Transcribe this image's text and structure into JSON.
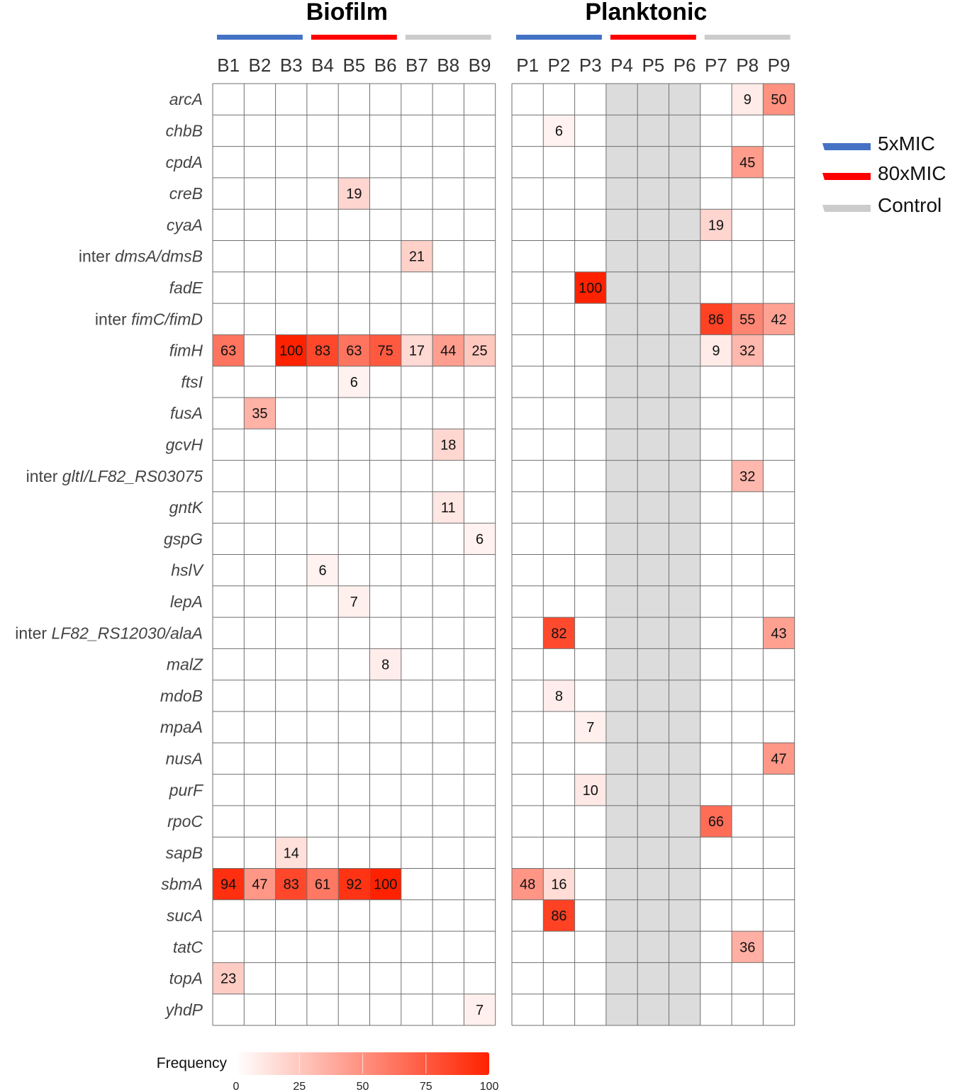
{
  "chart_data": {
    "type": "heatmap",
    "panels": [
      {
        "title": "Biofilm",
        "columns": [
          "B1",
          "B2",
          "B3",
          "B4",
          "B5",
          "B6",
          "B7",
          "B8",
          "B9"
        ],
        "greyed_columns": []
      },
      {
        "title": "Planktonic",
        "columns": [
          "P1",
          "P2",
          "P3",
          "P4",
          "P5",
          "P6",
          "P7",
          "P8",
          "P9"
        ],
        "greyed_columns": [
          "P4",
          "P5",
          "P6"
        ]
      }
    ],
    "rows": [
      {
        "pre": "",
        "gene": "arcA"
      },
      {
        "pre": "",
        "gene": "chbB"
      },
      {
        "pre": "",
        "gene": "cpdA"
      },
      {
        "pre": "",
        "gene": "creB"
      },
      {
        "pre": "",
        "gene": "cyaA"
      },
      {
        "pre": "inter ",
        "gene": "dmsA/dmsB"
      },
      {
        "pre": "",
        "gene": "fadE"
      },
      {
        "pre": "inter ",
        "gene": "fimC/fimD"
      },
      {
        "pre": "",
        "gene": "fimH"
      },
      {
        "pre": "",
        "gene": "ftsI"
      },
      {
        "pre": "",
        "gene": "fusA"
      },
      {
        "pre": "",
        "gene": "gcvH"
      },
      {
        "pre": "inter ",
        "gene": "gltI/LF82_RS03075"
      },
      {
        "pre": "",
        "gene": "gntK"
      },
      {
        "pre": "",
        "gene": "gspG"
      },
      {
        "pre": "",
        "gene": "hslV"
      },
      {
        "pre": "",
        "gene": "lepA"
      },
      {
        "pre": "inter ",
        "gene": "LF82_RS12030/alaA"
      },
      {
        "pre": "",
        "gene": "malZ"
      },
      {
        "pre": "",
        "gene": "mdoB"
      },
      {
        "pre": "",
        "gene": "mpaA"
      },
      {
        "pre": "",
        "gene": "nusA"
      },
      {
        "pre": "",
        "gene": "purF"
      },
      {
        "pre": "",
        "gene": "rpoC"
      },
      {
        "pre": "",
        "gene": "sapB"
      },
      {
        "pre": "",
        "gene": "sbmA"
      },
      {
        "pre": "",
        "gene": "sucA"
      },
      {
        "pre": "",
        "gene": "tatC"
      },
      {
        "pre": "",
        "gene": "topA"
      },
      {
        "pre": "",
        "gene": "yhdP"
      }
    ],
    "values": [
      {
        "row": "arcA",
        "col": "P8",
        "value": 9
      },
      {
        "row": "arcA",
        "col": "P9",
        "value": 50
      },
      {
        "row": "chbB",
        "col": "P2",
        "value": 6
      },
      {
        "row": "cpdA",
        "col": "P8",
        "value": 45
      },
      {
        "row": "creB",
        "col": "B5",
        "value": 19
      },
      {
        "row": "cyaA",
        "col": "P7",
        "value": 19
      },
      {
        "row": "dmsA/dmsB",
        "col": "B7",
        "value": 21
      },
      {
        "row": "fadE",
        "col": "P3",
        "value": 100
      },
      {
        "row": "fimC/fimD",
        "col": "P7",
        "value": 86
      },
      {
        "row": "fimC/fimD",
        "col": "P8",
        "value": 55
      },
      {
        "row": "fimC/fimD",
        "col": "P9",
        "value": 42
      },
      {
        "row": "fimH",
        "col": "B1",
        "value": 63
      },
      {
        "row": "fimH",
        "col": "B3",
        "value": 100
      },
      {
        "row": "fimH",
        "col": "B4",
        "value": 83
      },
      {
        "row": "fimH",
        "col": "B5",
        "value": 63
      },
      {
        "row": "fimH",
        "col": "B6",
        "value": 75
      },
      {
        "row": "fimH",
        "col": "B7",
        "value": 17
      },
      {
        "row": "fimH",
        "col": "B8",
        "value": 44
      },
      {
        "row": "fimH",
        "col": "B9",
        "value": 25
      },
      {
        "row": "fimH",
        "col": "P7",
        "value": 9
      },
      {
        "row": "fimH",
        "col": "P8",
        "value": 32
      },
      {
        "row": "ftsI",
        "col": "B5",
        "value": 6
      },
      {
        "row": "fusA",
        "col": "B2",
        "value": 35
      },
      {
        "row": "gcvH",
        "col": "B8",
        "value": 18
      },
      {
        "row": "gltI/LF82_RS03075",
        "col": "P8",
        "value": 32
      },
      {
        "row": "gntK",
        "col": "B8",
        "value": 11
      },
      {
        "row": "gspG",
        "col": "B9",
        "value": 6
      },
      {
        "row": "hslV",
        "col": "B4",
        "value": 6
      },
      {
        "row": "lepA",
        "col": "B5",
        "value": 7
      },
      {
        "row": "LF82_RS12030/alaA",
        "col": "P2",
        "value": 82
      },
      {
        "row": "LF82_RS12030/alaA",
        "col": "P9",
        "value": 43
      },
      {
        "row": "malZ",
        "col": "B6",
        "value": 8
      },
      {
        "row": "mdoB",
        "col": "P2",
        "value": 8
      },
      {
        "row": "mpaA",
        "col": "P3",
        "value": 7
      },
      {
        "row": "nusA",
        "col": "P9",
        "value": 47
      },
      {
        "row": "purF",
        "col": "P3",
        "value": 10
      },
      {
        "row": "rpoC",
        "col": "P7",
        "value": 66
      },
      {
        "row": "sapB",
        "col": "B3",
        "value": 14
      },
      {
        "row": "sbmA",
        "col": "B1",
        "value": 94
      },
      {
        "row": "sbmA",
        "col": "B2",
        "value": 47
      },
      {
        "row": "sbmA",
        "col": "B3",
        "value": 83
      },
      {
        "row": "sbmA",
        "col": "B4",
        "value": 61
      },
      {
        "row": "sbmA",
        "col": "B5",
        "value": 92
      },
      {
        "row": "sbmA",
        "col": "B6",
        "value": 100
      },
      {
        "row": "sbmA",
        "col": "P1",
        "value": 48
      },
      {
        "row": "sbmA",
        "col": "P2",
        "value": 16
      },
      {
        "row": "sucA",
        "col": "P2",
        "value": 86
      },
      {
        "row": "tatC",
        "col": "P8",
        "value": 36
      },
      {
        "row": "topA",
        "col": "B1",
        "value": 23
      },
      {
        "row": "yhdP",
        "col": "B9",
        "value": 7
      }
    ],
    "groups": [
      {
        "name": "5xMIC",
        "color": "#4472C4",
        "columns": [
          "B1",
          "B2",
          "B3",
          "P1",
          "P2",
          "P3"
        ]
      },
      {
        "name": "80xMIC",
        "color": "#FF0000",
        "columns": [
          "B4",
          "B5",
          "B6",
          "P4",
          "P5",
          "P6"
        ]
      },
      {
        "name": "Control",
        "color": "#CCCCCC",
        "columns": [
          "B7",
          "B8",
          "B9",
          "P7",
          "P8",
          "P9"
        ]
      }
    ],
    "legend_position": "right",
    "colorbar": {
      "title": "Frequency",
      "range": [
        0,
        100
      ],
      "ticks": [
        0,
        25,
        50,
        75,
        100
      ],
      "low_color": "#FFFFFF",
      "high_color": "#FF2200"
    },
    "greyed_color": "#DCDCDC"
  }
}
